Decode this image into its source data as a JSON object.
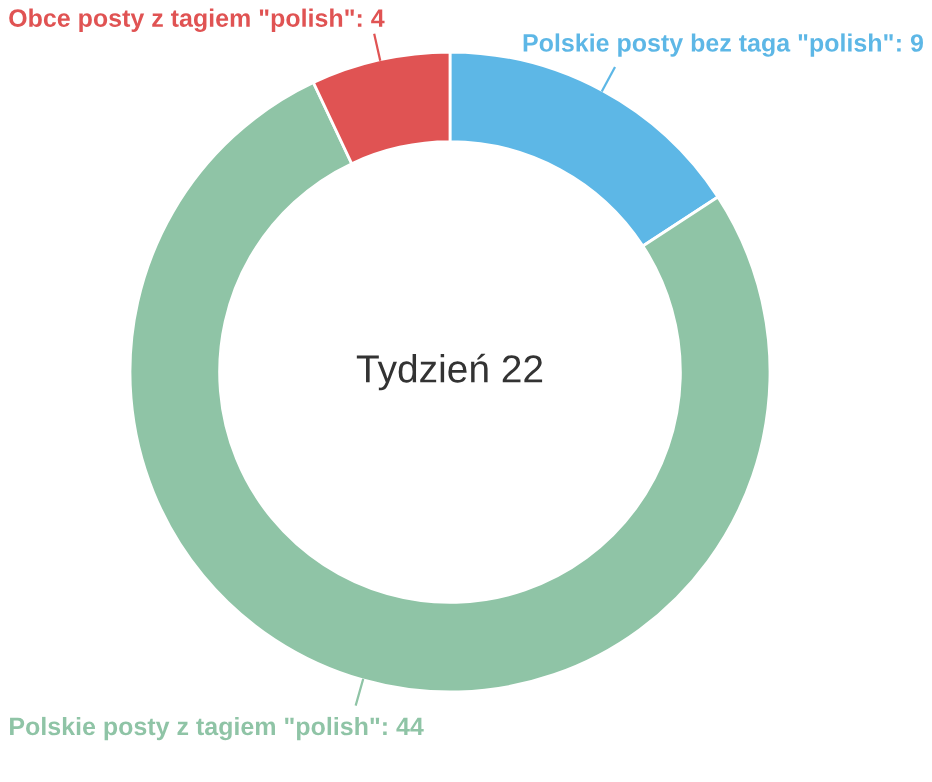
{
  "chart_data": {
    "type": "donut",
    "categories": [
      "Polskie posty bez taga \"polish\"",
      "Polskie posty z tagiem \"polish\"",
      "Obce posty z tagiem \"polish\""
    ],
    "values": [
      9,
      44,
      4
    ],
    "colors": [
      "#5db7e6",
      "#8fc4a6",
      "#e05353"
    ],
    "value_labels": [
      ": 9",
      ": 44",
      ": 4"
    ],
    "annotations": [
      "Tydzień 22"
    ]
  }
}
